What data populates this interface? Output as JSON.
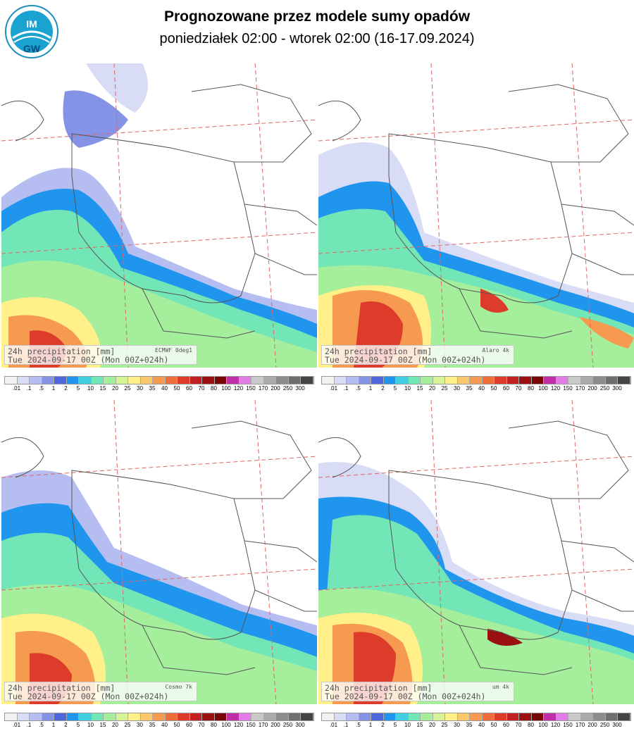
{
  "header": {
    "logo_text": "IMGW",
    "title": "Prognozowane przez modele sumy opadów",
    "subtitle": "poniedziałek 02:00 - wtorek 02:00 (16-17.09.2024)"
  },
  "colors": {
    "background": "#ffffff",
    "borders": "#555555",
    "gridlines": "#e06666",
    "scale": [
      "#f2f2f2",
      "#d9dcf5",
      "#b6bdf0",
      "#8593e6",
      "#4f67dc",
      "#1f95ee",
      "#3fcfe0",
      "#72e6b6",
      "#a4ee9c",
      "#d7f494",
      "#fff08a",
      "#fbc86b",
      "#f59a4e",
      "#ef6d38",
      "#dd3c2a",
      "#c0201f",
      "#9a0f10",
      "#7a0506",
      "#c02ea8",
      "#e27ce6",
      "#c9c9c9",
      "#aaaaaa",
      "#8c8c8c",
      "#6e6e6e",
      "#444444"
    ]
  },
  "scale_labels": [
    ".01",
    ".1",
    ".5",
    "1",
    "2",
    "5",
    "10",
    "15",
    "20",
    "25",
    "30",
    "35",
    "40",
    "50",
    "60",
    "70",
    "80",
    "100",
    "120",
    "150",
    "170",
    "200",
    "250",
    "300"
  ],
  "panels": [
    {
      "line1": "24h precipitation   [mm]",
      "model": "ECMWF 0deg1",
      "line2": "Tue 2024-09-17 00Z (Mon 00Z+024h)"
    },
    {
      "line1": "24h precipitation   [mm]",
      "model": "Alaro 4k",
      "line2": "Tue 2024-09-17 00Z (Mon 00Z+024h)"
    },
    {
      "line1": "24h precipitation   [mm]",
      "model": "Cosmo 7k",
      "line2": "Tue 2024-09-17 00Z (Mon 00Z+024h)"
    },
    {
      "line1": "24h precipitation   [mm]",
      "model": "um 4k",
      "line2": "Tue 2024-09-17 00Z (Mon 00Z+024h)"
    }
  ]
}
